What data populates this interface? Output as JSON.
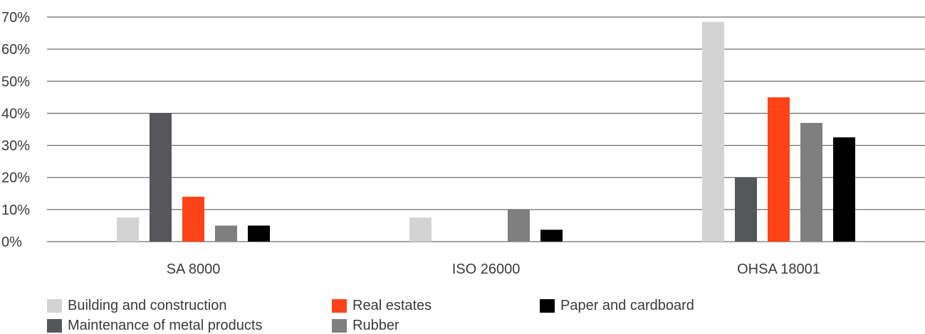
{
  "chart_data": {
    "type": "bar",
    "title": "",
    "xlabel": "",
    "ylabel": "",
    "categories": [
      "SA 8000",
      "ISO 26000",
      "OHSA 18001"
    ],
    "ylim": [
      0,
      70
    ],
    "yticks": [
      "0%",
      "10%",
      "20%",
      "30%",
      "40%",
      "50%",
      "60%",
      "70%"
    ],
    "ytick_values": [
      0,
      10,
      20,
      30,
      40,
      50,
      60,
      70
    ],
    "grid": true,
    "legend_position": "bottom",
    "series": [
      {
        "name": "Building and construction",
        "color": "#d3d3d3",
        "values": [
          7.5,
          7.5,
          68.5
        ]
      },
      {
        "name": "Maintenance of metal products",
        "color": "#55575b",
        "values": [
          40,
          0,
          20
        ]
      },
      {
        "name": "Real estates",
        "color": "#ff4319",
        "values": [
          14,
          0,
          45
        ]
      },
      {
        "name": "Rubber",
        "color": "#7f7f7f",
        "values": [
          5,
          10,
          37
        ]
      },
      {
        "name": "Paper and cardboard",
        "color": "#000000",
        "values": [
          5,
          3.7,
          32.5
        ]
      }
    ]
  }
}
